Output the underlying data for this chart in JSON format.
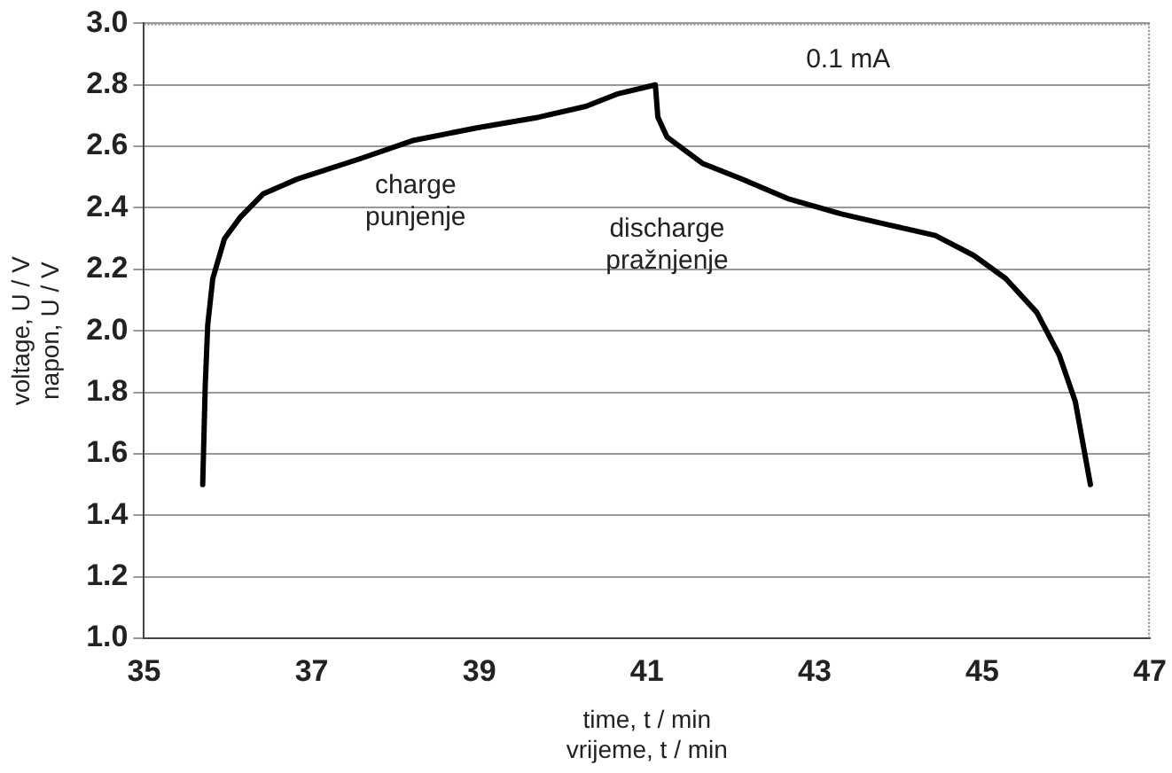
{
  "chart_data": {
    "type": "line",
    "xlabel": "time, t / min\nvrijeme, t / min",
    "ylabel": "voltage, U / V\nnapon, U / V",
    "annotations": [
      "0.1 mA",
      "charge\npunjenje",
      "discharge\npražnjenje"
    ],
    "x": [
      35.7,
      35.73,
      35.76,
      35.82,
      35.96,
      36.15,
      36.42,
      36.84,
      37.58,
      38.22,
      38.97,
      39.71,
      40.27,
      40.64,
      41.1,
      41.13,
      41.24,
      41.66,
      42.12,
      42.68,
      43.32,
      43.88,
      44.44,
      44.9,
      45.28,
      45.65,
      45.92,
      46.11,
      46.29
    ],
    "series": [
      {
        "color": "#000000",
        "values": [
          1.5,
          1.82,
          2.02,
          2.17,
          2.3,
          2.37,
          2.445,
          2.495,
          2.56,
          2.62,
          2.66,
          2.695,
          2.73,
          2.77,
          2.8,
          2.695,
          2.63,
          2.545,
          2.495,
          2.43,
          2.38,
          2.345,
          2.31,
          2.245,
          2.17,
          2.06,
          1.92,
          1.77,
          1.5
        ]
      }
    ],
    "xlim": [
      35,
      47
    ],
    "xticks": [
      35,
      37,
      39,
      41,
      43,
      45,
      47
    ],
    "ylim": [
      1.0,
      3.0
    ],
    "yticks": [
      {
        "value": 1.0,
        "label": "1.0"
      },
      {
        "value": 1.2,
        "label": "1.2"
      },
      {
        "value": 1.4,
        "label": "1.4"
      },
      {
        "value": 1.6,
        "label": "1.6"
      },
      {
        "value": 1.8,
        "label": "1.8"
      },
      {
        "value": 2.0,
        "label": "2.0"
      },
      {
        "value": 2.2,
        "label": "2.2"
      },
      {
        "value": 2.4,
        "label": "2.4"
      },
      {
        "value": 2.6,
        "label": "2.6"
      },
      {
        "value": 2.8,
        "label": "2.8"
      },
      {
        "value": 3.0,
        "label": "3.0"
      }
    ],
    "grid": "y",
    "legend": false,
    "marker": "none",
    "line_style": "solid"
  }
}
